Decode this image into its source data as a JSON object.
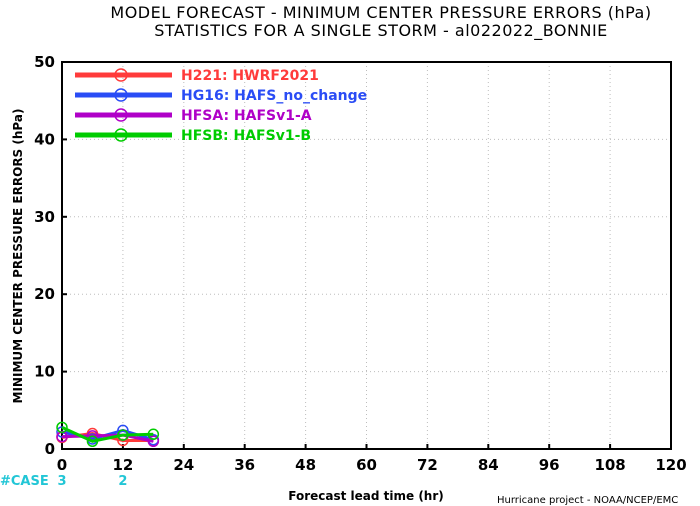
{
  "chart_data": {
    "type": "line",
    "title": "MODEL FORECAST - MINIMUM CENTER PRESSURE ERRORS (hPa)",
    "subtitle": "STATISTICS FOR A SINGLE STORM - al022022_BONNIE",
    "xlabel": "Forecast lead time (hr)",
    "ylabel": "MINIMUM CENTER PRESSURE ERRORS (hPa)",
    "xlim": [
      0,
      120
    ],
    "ylim": [
      0,
      50
    ],
    "x_ticks": [
      0,
      12,
      24,
      36,
      48,
      60,
      72,
      84,
      96,
      108,
      120
    ],
    "y_ticks": [
      0,
      10,
      20,
      30,
      40,
      50
    ],
    "grid": true,
    "legend_position": "top-left",
    "series": [
      {
        "name": "H221: HWRF2021",
        "color": "#ff3b3b",
        "x": [
          0,
          6,
          12,
          18
        ],
        "y": [
          1.5,
          2.0,
          1.1,
          1.1
        ]
      },
      {
        "name": "HG16: HAFS_no_change",
        "color": "#2a4cf5",
        "x": [
          0,
          6,
          12,
          18
        ],
        "y": [
          2.2,
          1.3,
          2.4,
          1.2
        ]
      },
      {
        "name": "HFSA: HAFSv1-A",
        "color": "#b000c8",
        "x": [
          0,
          6,
          12,
          18
        ],
        "y": [
          1.6,
          1.7,
          1.8,
          1.0
        ]
      },
      {
        "name": "HFSB: HAFSv1-B",
        "color": "#00cc00",
        "x": [
          0,
          6,
          12,
          18
        ],
        "y": [
          2.8,
          1.0,
          1.8,
          1.9
        ]
      }
    ],
    "case_label": "#CASE",
    "case_counts": [
      {
        "x": 0,
        "count": "3"
      },
      {
        "x": 12,
        "count": "2"
      }
    ],
    "case_color": "#22c6d6"
  },
  "footer": {
    "credit": "Hurricane project - NOAA/NCEP/EMC"
  }
}
